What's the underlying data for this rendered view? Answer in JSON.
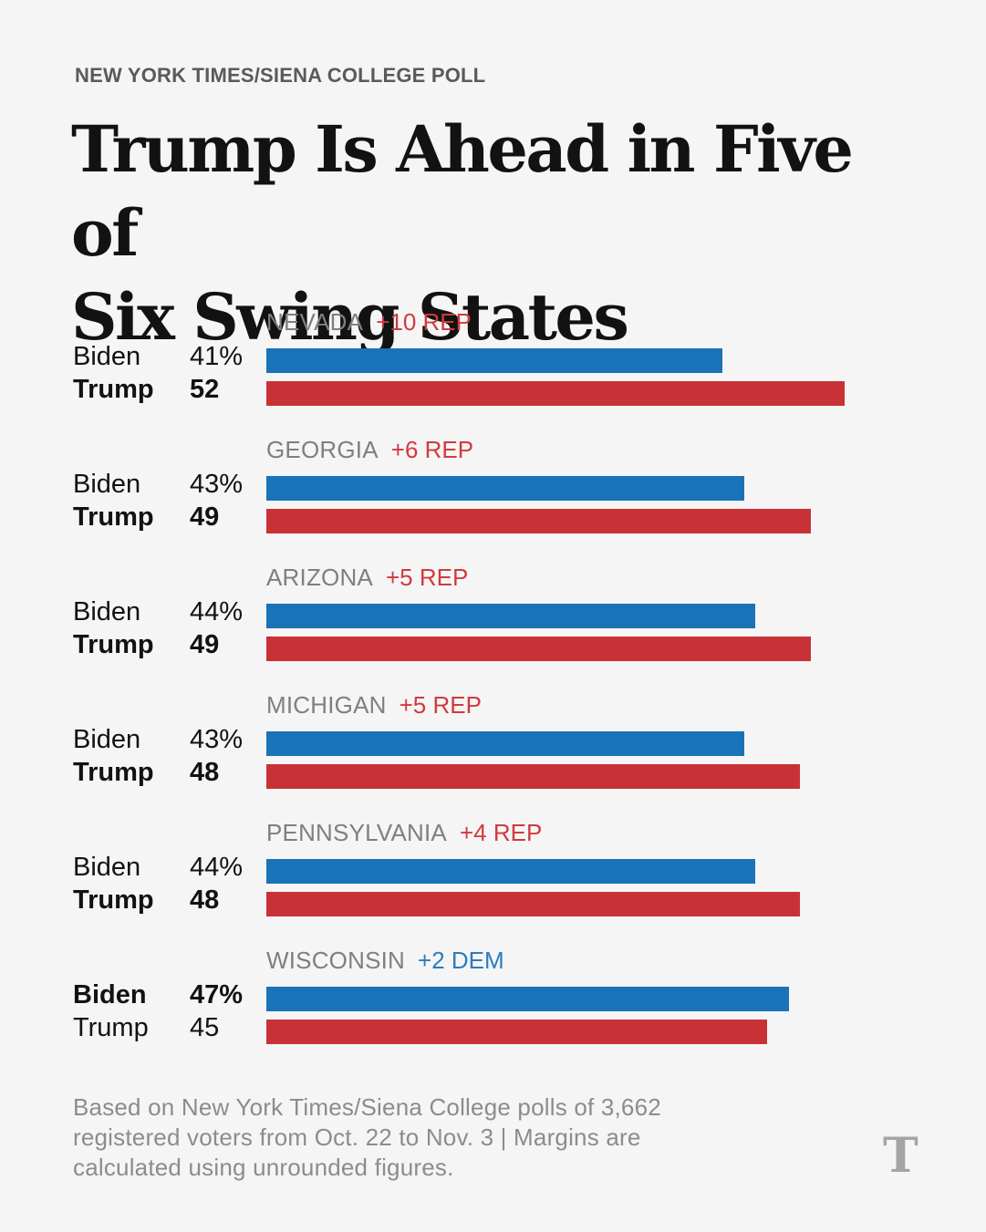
{
  "kicker": "NEW YORK TIMES/SIENA COLLEGE POLL",
  "title_lines": [
    "Trump Is Ahead in Five of",
    "Six Swing States"
  ],
  "colors": {
    "biden": "#1a72b8",
    "trump": "#c83236",
    "rep_margin": "#d03a3e",
    "dem_margin": "#2b7cc0"
  },
  "chart_data": {
    "type": "bar",
    "orientation": "horizontal",
    "categories": [
      "NEVADA",
      "GEORGIA",
      "ARIZONA",
      "MICHIGAN",
      "PENNSYLVANIA",
      "WISCONSIN"
    ],
    "margins": [
      "+10 REP",
      "+6 REP",
      "+5 REP",
      "+5 REP",
      "+4 REP",
      "+2 DEM"
    ],
    "margin_party": [
      "rep",
      "rep",
      "rep",
      "rep",
      "rep",
      "dem"
    ],
    "series": [
      {
        "name": "Biden",
        "values": [
          41,
          43,
          44,
          43,
          44,
          47
        ],
        "value_labels": [
          "41%",
          "43%",
          "44%",
          "43%",
          "44%",
          "47%"
        ]
      },
      {
        "name": "Trump",
        "values": [
          52,
          49,
          49,
          48,
          48,
          45
        ],
        "value_labels": [
          "52",
          "49",
          "49",
          "48",
          "48",
          "45"
        ]
      }
    ],
    "leader": [
      "Trump",
      "Trump",
      "Trump",
      "Trump",
      "Trump",
      "Biden"
    ]
  },
  "note_lines": [
    "Based on New York Times/Siena College polls of 3,662",
    "registered voters from Oct. 22 to Nov. 3 | Margins are",
    "calculated using unrounded figures."
  ],
  "logo": {
    "icon": "nyt-t-logo-icon",
    "glyph": "T"
  }
}
